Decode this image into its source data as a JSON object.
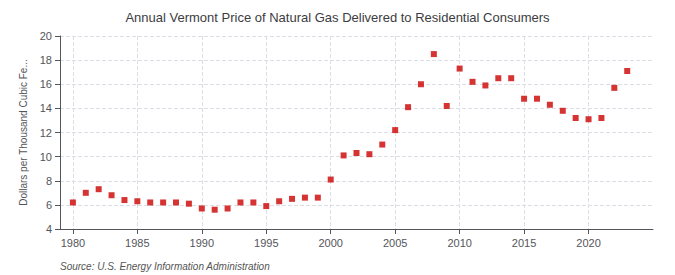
{
  "chart_data": {
    "type": "scatter",
    "title": "Annual Vermont Price of Natural Gas Delivered to Residential Consumers",
    "ylabel": "Dollars per Thousand Cubic Fe...",
    "annotations": [
      "Source: U.S. Energy Information Administration"
    ],
    "x": [
      1980,
      1981,
      1982,
      1983,
      1984,
      1985,
      1986,
      1987,
      1988,
      1989,
      1990,
      1991,
      1992,
      1993,
      1994,
      1995,
      1996,
      1997,
      1998,
      1999,
      2000,
      2001,
      2002,
      2003,
      2004,
      2005,
      2006,
      2007,
      2008,
      2009,
      2010,
      2011,
      2012,
      2013,
      2014,
      2015,
      2016,
      2017,
      2018,
      2019,
      2020,
      2021,
      2022,
      2023
    ],
    "values": [
      6.2,
      7.0,
      7.3,
      6.8,
      6.4,
      6.3,
      6.2,
      6.2,
      6.2,
      6.1,
      5.7,
      5.6,
      5.7,
      6.2,
      6.2,
      5.9,
      6.3,
      6.5,
      6.6,
      6.6,
      8.1,
      10.1,
      10.3,
      10.2,
      11.0,
      12.2,
      14.1,
      16.0,
      18.5,
      14.2,
      17.3,
      16.2,
      15.9,
      16.5,
      16.5,
      14.8,
      14.8,
      14.3,
      13.8,
      13.2,
      13.1,
      13.2,
      15.7,
      17.1
    ],
    "color": "#cc0000",
    "marker": "square",
    "xlim": [
      1979,
      2025
    ],
    "xticks": [
      1980,
      1985,
      1990,
      1995,
      2000,
      2005,
      2010,
      2015,
      2020
    ],
    "ylim": [
      4,
      20
    ],
    "yticks": [
      4,
      6,
      8,
      10,
      12,
      14,
      16,
      18,
      20
    ],
    "grid": true
  }
}
